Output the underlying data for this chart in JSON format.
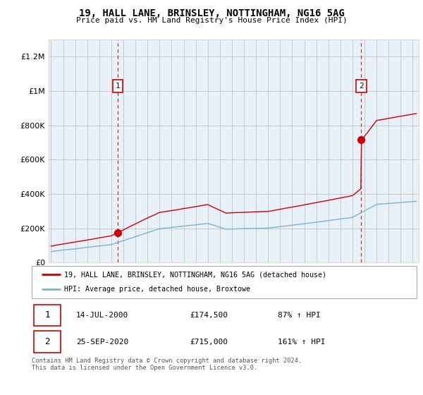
{
  "title": "19, HALL LANE, BRINSLEY, NOTTINGHAM, NG16 5AG",
  "subtitle": "Price paid vs. HM Land Registry's House Price Index (HPI)",
  "ylim": [
    0,
    1300000
  ],
  "yticks": [
    0,
    200000,
    400000,
    600000,
    800000,
    1000000,
    1200000
  ],
  "sale1_x": 2000.54,
  "sale1_y": 174500,
  "sale2_x": 2020.73,
  "sale2_y": 715000,
  "hpi_color": "#7ab3d4",
  "sold_color": "#cc0000",
  "bg_color": "#e8f0f8",
  "legend_label1": "19, HALL LANE, BRINSLEY, NOTTINGHAM, NG16 5AG (detached house)",
  "legend_label2": "HPI: Average price, detached house, Broxtowe",
  "table_rows": [
    [
      "1",
      "14-JUL-2000",
      "£174,500",
      "87% ↑ HPI"
    ],
    [
      "2",
      "25-SEP-2020",
      "£715,000",
      "161% ↑ HPI"
    ]
  ],
  "footnote": "Contains HM Land Registry data © Crown copyright and database right 2024.\nThis data is licensed under the Open Government Licence v3.0.",
  "xmin": 1994.8,
  "xmax": 2025.5
}
